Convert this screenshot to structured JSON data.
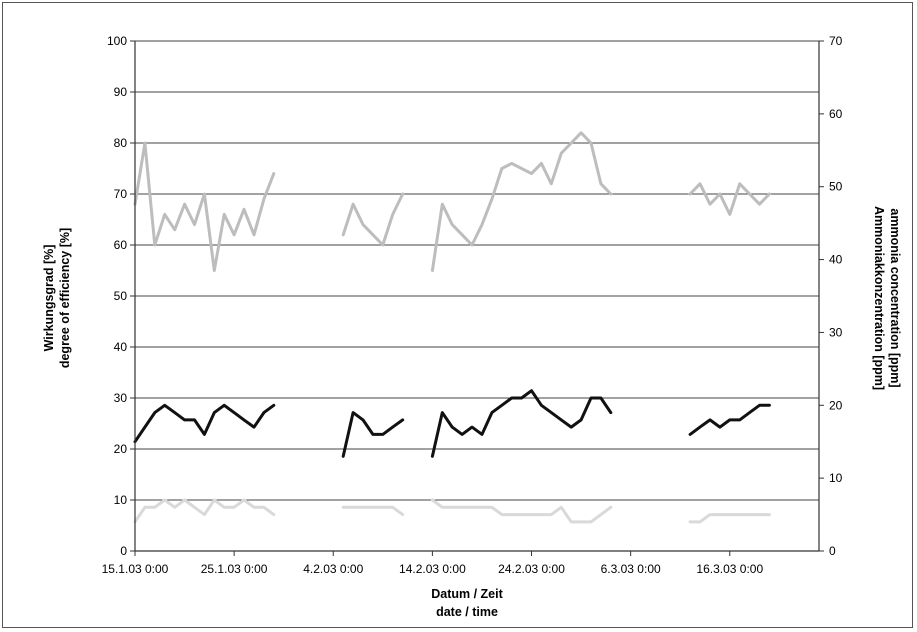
{
  "chart_data": {
    "type": "line",
    "title": "",
    "xlabel": "Datum / Zeit",
    "xlabel2": "date / time",
    "ylabel_left": "Wirkungsgrad [%]",
    "ylabel_left2": "degree of efficiency [%]",
    "ylabel_right": "Ammoniakkonzentration [ppm]",
    "ylabel_right2": "ammonia concentration [ppm]",
    "xlim": [
      "15.1.03",
      "25.3.03"
    ],
    "ylim_left": [
      0,
      100
    ],
    "ylim_right": [
      0,
      70
    ],
    "grid": true,
    "legend": "none",
    "x_ticks": [
      "15.1.03 0:00",
      "25.1.03 0:00",
      "4.2.03 0:00",
      "14.2.03 0:00",
      "24.2.03 0:00",
      "6.3.03 0:00",
      "16.3.03 0:00"
    ],
    "y_ticks_left": [
      "0",
      "10",
      "20",
      "30",
      "40",
      "50",
      "60",
      "70",
      "80",
      "90",
      "100"
    ],
    "y_ticks_right": [
      "0",
      "10",
      "20",
      "30",
      "40",
      "50",
      "60",
      "70"
    ],
    "series": [
      {
        "axis": "left",
        "color": "#bdbdbd",
        "segments": [
          [
            [
              "15.1.03",
              68
            ],
            [
              "16.1.03",
              80
            ],
            [
              "17.1.03",
              60
            ],
            [
              "18.1.03",
              66
            ],
            [
              "19.1.03",
              63
            ],
            [
              "20.1.03",
              68
            ],
            [
              "21.1.03",
              64
            ],
            [
              "22.1.03",
              70
            ],
            [
              "23.1.03",
              55
            ],
            [
              "24.1.03",
              66
            ],
            [
              "25.1.03",
              62
            ],
            [
              "26.1.03",
              67
            ],
            [
              "27.1.03",
              62
            ],
            [
              "28.1.03",
              69
            ],
            [
              "29.1.03",
              74
            ]
          ],
          [
            [
              "5.2.03",
              62
            ],
            [
              "6.2.03",
              68
            ],
            [
              "7.2.03",
              64
            ],
            [
              "8.2.03",
              62
            ],
            [
              "9.2.03",
              60
            ],
            [
              "10.2.03",
              66
            ],
            [
              "11.2.03",
              70
            ]
          ],
          [
            [
              "14.2.03",
              55
            ],
            [
              "15.2.03",
              68
            ],
            [
              "16.2.03",
              64
            ],
            [
              "17.2.03",
              62
            ],
            [
              "18.2.03",
              60
            ],
            [
              "19.2.03",
              64
            ],
            [
              "20.2.03",
              69
            ],
            [
              "21.2.03",
              75
            ],
            [
              "22.2.03",
              76
            ],
            [
              "23.2.03",
              75
            ],
            [
              "24.2.03",
              74
            ],
            [
              "25.2.03",
              76
            ],
            [
              "26.2.03",
              72
            ],
            [
              "27.2.03",
              78
            ],
            [
              "28.2.03",
              80
            ],
            [
              "1.3.03",
              82
            ],
            [
              "2.3.03",
              80
            ],
            [
              "3.3.03",
              72
            ],
            [
              "4.3.03",
              70
            ]
          ],
          [
            [
              "12.3.03",
              70
            ],
            [
              "13.3.03",
              72
            ],
            [
              "14.3.03",
              68
            ],
            [
              "15.3.03",
              70
            ],
            [
              "16.3.03",
              66
            ],
            [
              "17.3.03",
              72
            ],
            [
              "18.3.03",
              70
            ],
            [
              "19.3.03",
              68
            ],
            [
              "20.3.03",
              70
            ]
          ]
        ]
      },
      {
        "axis": "right",
        "color": "#111111",
        "segments": [
          [
            [
              "15.1.03",
              15
            ],
            [
              "16.1.03",
              17
            ],
            [
              "17.1.03",
              19
            ],
            [
              "18.1.03",
              20
            ],
            [
              "19.1.03",
              19
            ],
            [
              "20.1.03",
              18
            ],
            [
              "21.1.03",
              18
            ],
            [
              "22.1.03",
              16
            ],
            [
              "23.1.03",
              19
            ],
            [
              "24.1.03",
              20
            ],
            [
              "25.1.03",
              19
            ],
            [
              "26.1.03",
              18
            ],
            [
              "27.1.03",
              17
            ],
            [
              "28.1.03",
              19
            ],
            [
              "29.1.03",
              20
            ]
          ],
          [
            [
              "5.2.03",
              13
            ],
            [
              "6.2.03",
              19
            ],
            [
              "7.2.03",
              18
            ],
            [
              "8.2.03",
              16
            ],
            [
              "9.2.03",
              16
            ],
            [
              "10.2.03",
              17
            ],
            [
              "11.2.03",
              18
            ]
          ],
          [
            [
              "14.2.03",
              13
            ],
            [
              "15.2.03",
              19
            ],
            [
              "16.2.03",
              17
            ],
            [
              "17.2.03",
              16
            ],
            [
              "18.2.03",
              17
            ],
            [
              "19.2.03",
              16
            ],
            [
              "20.2.03",
              19
            ],
            [
              "21.2.03",
              20
            ],
            [
              "22.2.03",
              21
            ],
            [
              "23.2.03",
              21
            ],
            [
              "24.2.03",
              22
            ],
            [
              "25.2.03",
              20
            ],
            [
              "26.2.03",
              19
            ],
            [
              "27.2.03",
              18
            ],
            [
              "28.2.03",
              17
            ],
            [
              "1.3.03",
              18
            ],
            [
              "2.3.03",
              21
            ],
            [
              "3.3.03",
              21
            ],
            [
              "4.3.03",
              19
            ]
          ],
          [
            [
              "12.3.03",
              16
            ],
            [
              "13.3.03",
              17
            ],
            [
              "14.3.03",
              18
            ],
            [
              "15.3.03",
              17
            ],
            [
              "16.3.03",
              18
            ],
            [
              "17.3.03",
              18
            ],
            [
              "18.3.03",
              19
            ],
            [
              "19.3.03",
              20
            ],
            [
              "20.3.03",
              20
            ]
          ]
        ]
      },
      {
        "axis": "right",
        "color": "#d9d9d9",
        "segments": [
          [
            [
              "15.1.03",
              4
            ],
            [
              "16.1.03",
              6
            ],
            [
              "17.1.03",
              6
            ],
            [
              "18.1.03",
              7
            ],
            [
              "19.1.03",
              6
            ],
            [
              "20.1.03",
              7
            ],
            [
              "21.1.03",
              6
            ],
            [
              "22.1.03",
              5
            ],
            [
              "23.1.03",
              7
            ],
            [
              "24.1.03",
              6
            ],
            [
              "25.1.03",
              6
            ],
            [
              "26.1.03",
              7
            ],
            [
              "27.1.03",
              6
            ],
            [
              "28.1.03",
              6
            ],
            [
              "29.1.03",
              5
            ]
          ],
          [
            [
              "5.2.03",
              6
            ],
            [
              "6.2.03",
              6
            ],
            [
              "7.2.03",
              6
            ],
            [
              "8.2.03",
              6
            ],
            [
              "9.2.03",
              6
            ],
            [
              "10.2.03",
              6
            ],
            [
              "11.2.03",
              5
            ]
          ],
          [
            [
              "14.2.03",
              7
            ],
            [
              "15.2.03",
              6
            ],
            [
              "16.2.03",
              6
            ],
            [
              "17.2.03",
              6
            ],
            [
              "18.2.03",
              6
            ],
            [
              "19.2.03",
              6
            ],
            [
              "20.2.03",
              6
            ],
            [
              "21.2.03",
              5
            ],
            [
              "22.2.03",
              5
            ],
            [
              "23.2.03",
              5
            ],
            [
              "24.2.03",
              5
            ],
            [
              "25.2.03",
              5
            ],
            [
              "26.2.03",
              5
            ],
            [
              "27.2.03",
              6
            ],
            [
              "28.2.03",
              4
            ],
            [
              "1.3.03",
              4
            ],
            [
              "2.3.03",
              4
            ],
            [
              "3.3.03",
              5
            ],
            [
              "4.3.03",
              6
            ]
          ],
          [
            [
              "12.3.03",
              4
            ],
            [
              "13.3.03",
              4
            ],
            [
              "14.3.03",
              5
            ],
            [
              "15.3.03",
              5
            ],
            [
              "16.3.03",
              5
            ],
            [
              "17.3.03",
              5
            ],
            [
              "18.3.03",
              5
            ],
            [
              "19.3.03",
              5
            ],
            [
              "20.3.03",
              5
            ]
          ]
        ]
      }
    ]
  }
}
